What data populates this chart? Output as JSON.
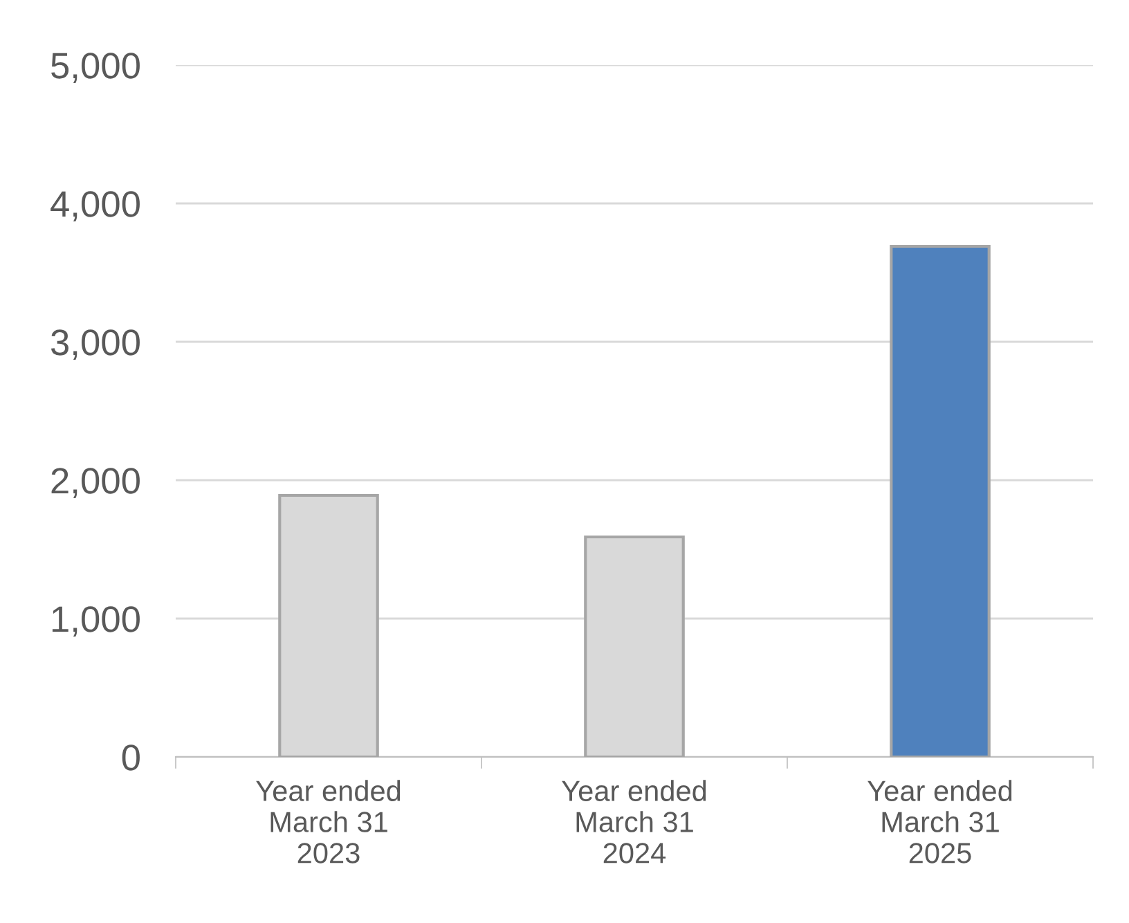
{
  "chart_data": {
    "type": "bar",
    "categories": [
      "Year ended\nMarch 31\n2023",
      "Year ended\nMarch 31\n2024",
      "Year ended\nMarch 31\n2025"
    ],
    "values": [
      1890,
      1590,
      3690
    ],
    "colors": [
      "#d9d9d9",
      "#d9d9d9",
      "#4f81bd"
    ],
    "ylim": [
      0,
      5000
    ],
    "yticks": [
      {
        "value": 0,
        "label": "0"
      },
      {
        "value": 1000,
        "label": "1,000"
      },
      {
        "value": 2000,
        "label": "2,000"
      },
      {
        "value": 3000,
        "label": "3,000"
      },
      {
        "value": 4000,
        "label": "4,000"
      },
      {
        "value": 5000,
        "label": "5,000"
      }
    ],
    "grid": "y",
    "legend": false
  }
}
